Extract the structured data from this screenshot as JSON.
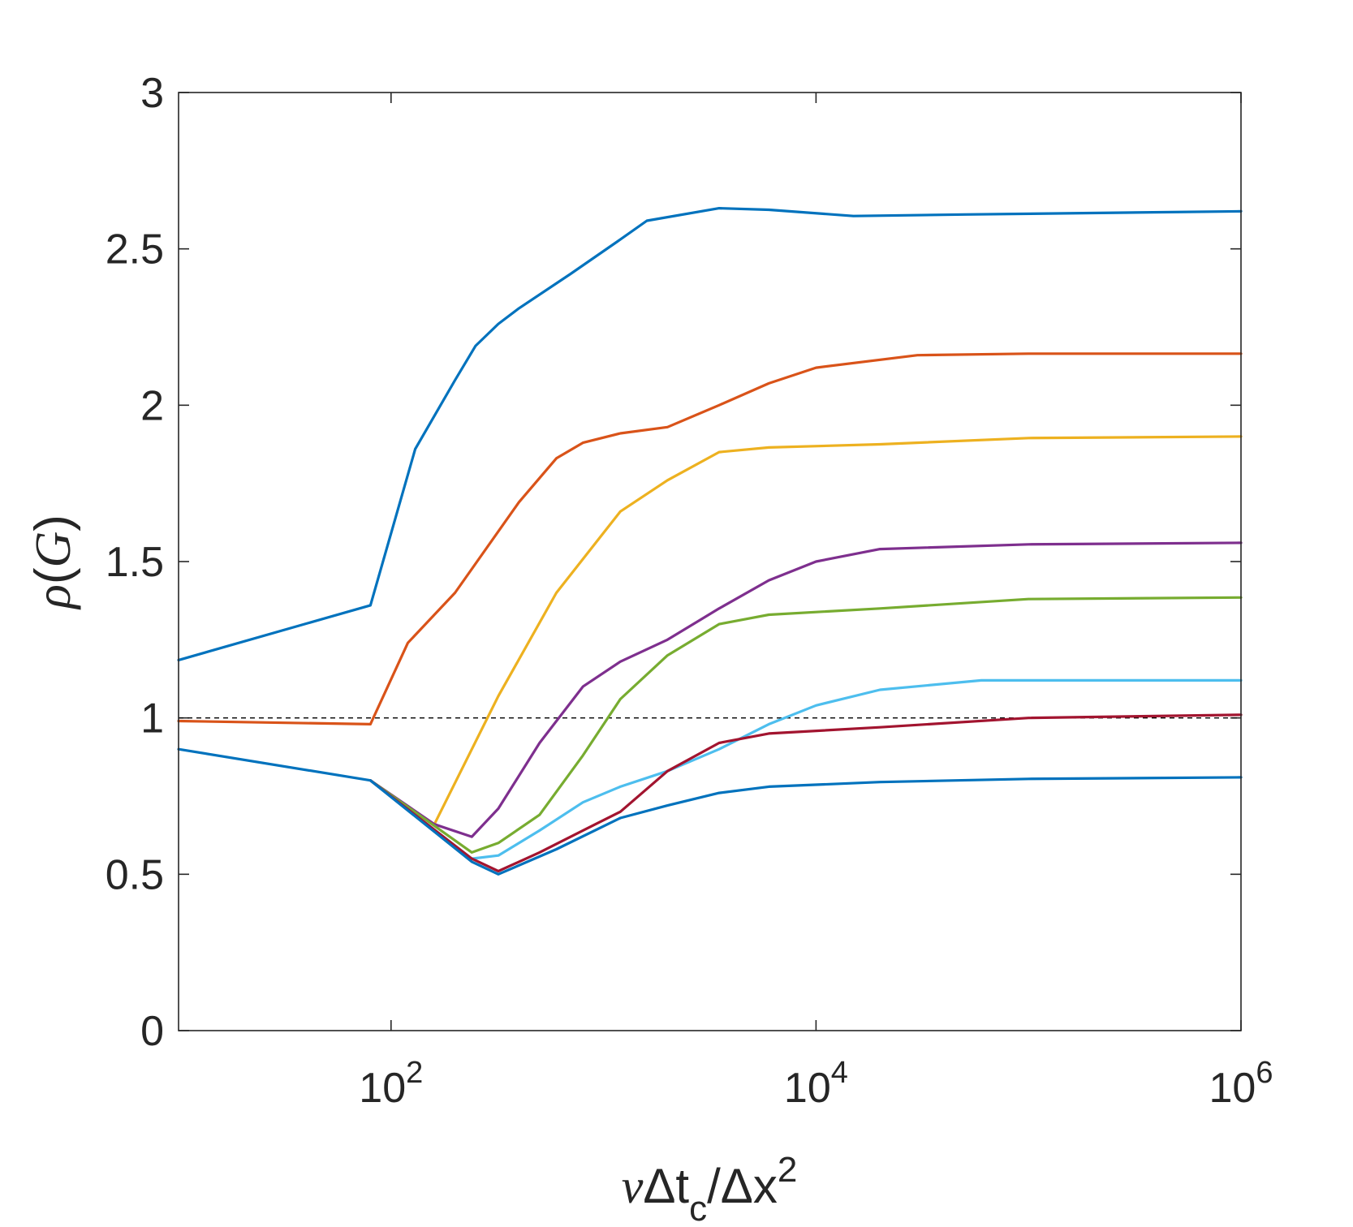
{
  "chart_data": {
    "type": "line",
    "xscale": "log",
    "xlim": [
      10,
      1000000
    ],
    "ylim": [
      0,
      3
    ],
    "xticks": [
      {
        "value": 100,
        "base": "10",
        "exp": "2"
      },
      {
        "value": 10000,
        "base": "10",
        "exp": "4"
      },
      {
        "value": 1000000,
        "base": "10",
        "exp": "6"
      }
    ],
    "yticks": [
      {
        "value": 0,
        "label": "0"
      },
      {
        "value": 0.5,
        "label": "0.5"
      },
      {
        "value": 1,
        "label": "1"
      },
      {
        "value": 1.5,
        "label": "1.5"
      },
      {
        "value": 2,
        "label": "2"
      },
      {
        "value": 2.5,
        "label": "2.5"
      },
      {
        "value": 3,
        "label": "3"
      }
    ],
    "xlabel": {
      "nu": "ν",
      "delta_t": "Δt",
      "sub": "c",
      "slash_delta_x": "/Δx",
      "sup": "2"
    },
    "ylabel": {
      "rho": "ρ",
      "open": "(",
      "G": "G",
      "close": ")"
    },
    "grid": false,
    "reference_line": {
      "y": 1,
      "style": "dashed",
      "color": "#000000"
    },
    "series": [
      {
        "color": "#0072BD",
        "points": [
          [
            10,
            1.185
          ],
          [
            80,
            1.36
          ],
          [
            130,
            1.86
          ],
          [
            200,
            2.08
          ],
          [
            250,
            2.19
          ],
          [
            320,
            2.26
          ],
          [
            400,
            2.31
          ],
          [
            700,
            2.42
          ],
          [
            1200,
            2.53
          ],
          [
            1600,
            2.59
          ],
          [
            3500,
            2.63
          ],
          [
            6000,
            2.625
          ],
          [
            15000,
            2.605
          ],
          [
            50000,
            2.61
          ],
          [
            1000000,
            2.62
          ]
        ]
      },
      {
        "color": "#D95319",
        "points": [
          [
            10,
            0.99
          ],
          [
            80,
            0.98
          ],
          [
            120,
            1.24
          ],
          [
            200,
            1.4
          ],
          [
            400,
            1.69
          ],
          [
            600,
            1.83
          ],
          [
            800,
            1.88
          ],
          [
            1200,
            1.91
          ],
          [
            2000,
            1.93
          ],
          [
            3500,
            2.0
          ],
          [
            6000,
            2.07
          ],
          [
            10000,
            2.12
          ],
          [
            30000,
            2.16
          ],
          [
            100000,
            2.165
          ],
          [
            1000000,
            2.165
          ]
        ]
      },
      {
        "color": "#EDB120",
        "points": [
          [
            160,
            0.66
          ],
          [
            320,
            1.07
          ],
          [
            600,
            1.4
          ],
          [
            1200,
            1.66
          ],
          [
            2000,
            1.76
          ],
          [
            3500,
            1.85
          ],
          [
            6000,
            1.865
          ],
          [
            20000,
            1.875
          ],
          [
            100000,
            1.895
          ],
          [
            1000000,
            1.9
          ]
        ]
      },
      {
        "color": "#7E2F8E",
        "points": [
          [
            80,
            0.8
          ],
          [
            160,
            0.66
          ],
          [
            240,
            0.62
          ],
          [
            320,
            0.71
          ],
          [
            500,
            0.92
          ],
          [
            800,
            1.1
          ],
          [
            1200,
            1.18
          ],
          [
            2000,
            1.25
          ],
          [
            3500,
            1.35
          ],
          [
            6000,
            1.44
          ],
          [
            10000,
            1.5
          ],
          [
            20000,
            1.54
          ],
          [
            100000,
            1.555
          ],
          [
            1000000,
            1.56
          ]
        ]
      },
      {
        "color": "#77AC30",
        "points": [
          [
            80,
            0.8
          ],
          [
            240,
            0.57
          ],
          [
            320,
            0.6
          ],
          [
            500,
            0.69
          ],
          [
            800,
            0.88
          ],
          [
            1200,
            1.06
          ],
          [
            2000,
            1.2
          ],
          [
            3500,
            1.3
          ],
          [
            6000,
            1.33
          ],
          [
            20000,
            1.35
          ],
          [
            100000,
            1.38
          ],
          [
            1000000,
            1.385
          ]
        ]
      },
      {
        "color": "#4DBEEE",
        "points": [
          [
            80,
            0.8
          ],
          [
            240,
            0.55
          ],
          [
            320,
            0.56
          ],
          [
            500,
            0.64
          ],
          [
            800,
            0.73
          ],
          [
            1200,
            0.78
          ],
          [
            2000,
            0.83
          ],
          [
            3500,
            0.9
          ],
          [
            6000,
            0.98
          ],
          [
            10000,
            1.04
          ],
          [
            20000,
            1.09
          ],
          [
            60000,
            1.12
          ],
          [
            1000000,
            1.12
          ]
        ]
      },
      {
        "color": "#A2142F",
        "points": [
          [
            80,
            0.8
          ],
          [
            240,
            0.55
          ],
          [
            320,
            0.51
          ],
          [
            500,
            0.57
          ],
          [
            800,
            0.64
          ],
          [
            1200,
            0.7
          ],
          [
            2000,
            0.83
          ],
          [
            3500,
            0.92
          ],
          [
            6000,
            0.95
          ],
          [
            20000,
            0.97
          ],
          [
            100000,
            1.0
          ],
          [
            1000000,
            1.01
          ]
        ]
      },
      {
        "color": "#0072BD",
        "points": [
          [
            10,
            0.9
          ],
          [
            80,
            0.8
          ],
          [
            240,
            0.54
          ],
          [
            320,
            0.5
          ],
          [
            600,
            0.58
          ],
          [
            1200,
            0.68
          ],
          [
            2000,
            0.72
          ],
          [
            3500,
            0.76
          ],
          [
            6000,
            0.78
          ],
          [
            20000,
            0.795
          ],
          [
            100000,
            0.805
          ],
          [
            1000000,
            0.81
          ]
        ]
      }
    ]
  }
}
